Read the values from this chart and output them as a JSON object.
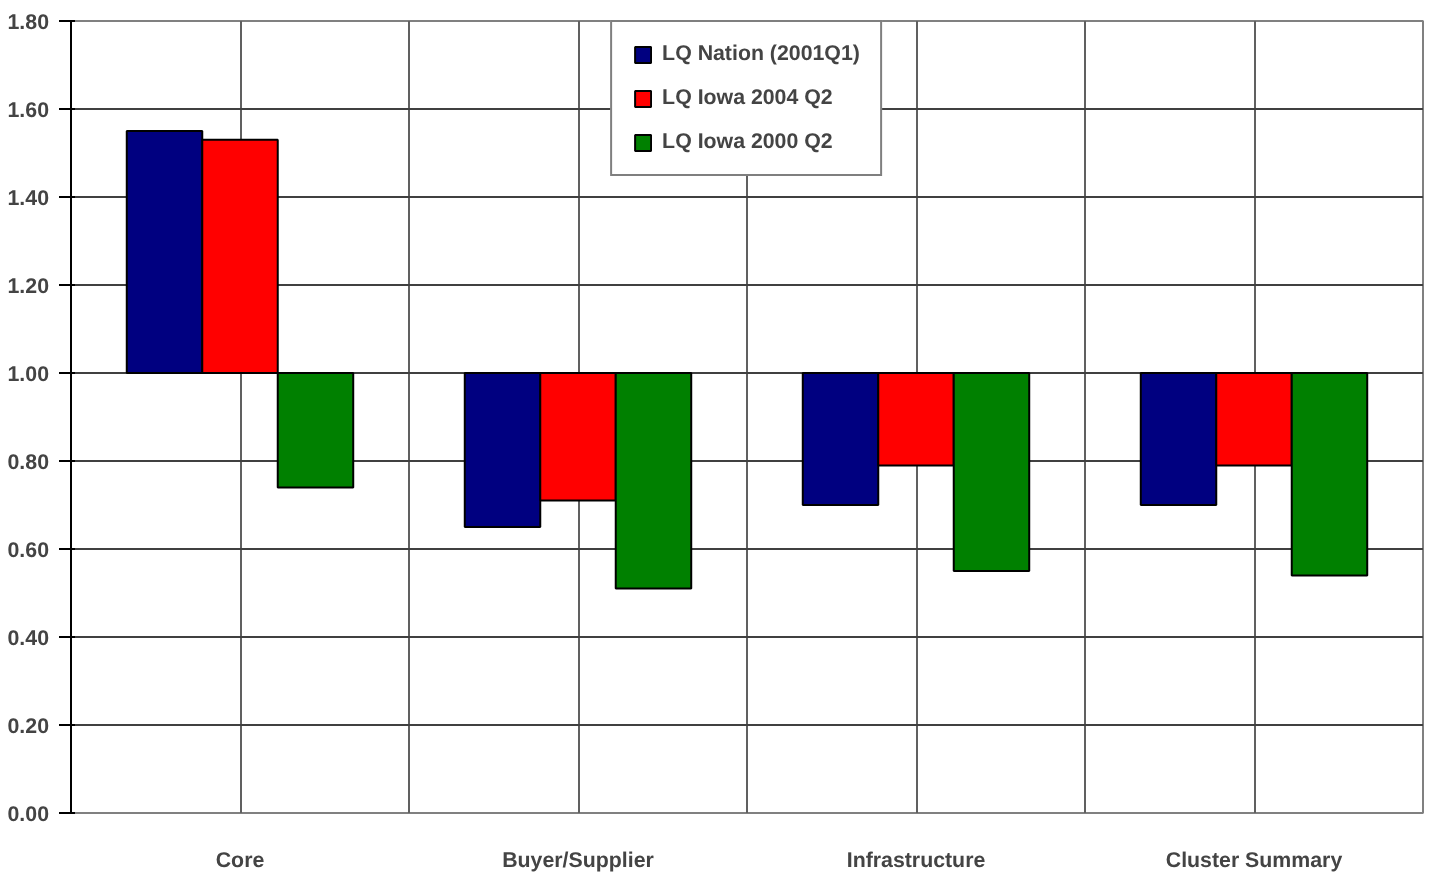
{
  "chart_data": {
    "type": "bar",
    "categories": [
      "Core",
      "Buyer/Supplier",
      "Infrastructure",
      "Cluster Summary"
    ],
    "series": [
      {
        "name": "LQ Nation (2001Q1)",
        "color": "#000080",
        "base": [
          1.0,
          1.0,
          1.0,
          1.0
        ],
        "values": [
          0.55,
          -0.35,
          -0.3,
          -0.3
        ]
      },
      {
        "name": "LQ Iowa 2004 Q2",
        "color": "#ff0000",
        "base": [
          1.0,
          1.0,
          1.0,
          1.0
        ],
        "values": [
          0.53,
          -0.29,
          -0.21,
          -0.21
        ]
      },
      {
        "name": "LQ Iowa 2000 Q2",
        "color": "#008000",
        "base": [
          1.0,
          1.0,
          1.0,
          1.0
        ],
        "values": [
          -0.26,
          -0.49,
          -0.45,
          -0.46
        ]
      }
    ],
    "ylim": [
      0,
      1.8
    ],
    "yticks": [
      {
        "value": 0,
        "label": "0.00"
      },
      {
        "value": 0.2,
        "label": "0.20"
      },
      {
        "value": 0.4,
        "label": "0.40"
      },
      {
        "value": 0.6,
        "label": "0.60"
      },
      {
        "value": 0.8,
        "label": "0.80"
      },
      {
        "value": 1.0,
        "label": "1.00"
      },
      {
        "value": 1.2,
        "label": "1.20"
      },
      {
        "value": 1.4,
        "label": "1.40"
      },
      {
        "value": 1.6,
        "label": "1.60"
      },
      {
        "value": 1.8,
        "label": "1.80"
      }
    ],
    "grid": true,
    "legend": "top"
  }
}
